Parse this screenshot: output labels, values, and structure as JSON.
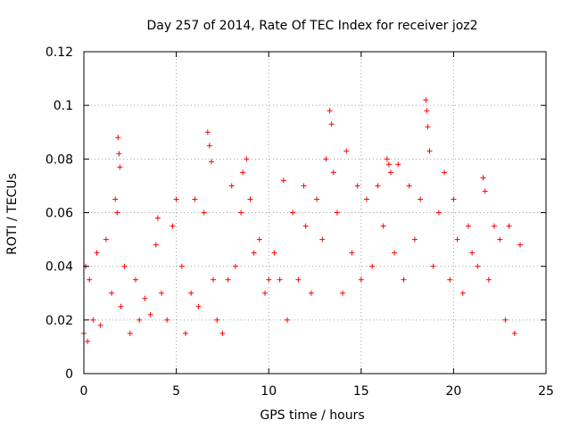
{
  "chart_data": {
    "type": "scatter",
    "title": "Day 257 of 2014, Rate Of TEC Index for receiver joz2",
    "xlabel": "GPS time / hours",
    "ylabel": "ROTI / TECUs",
    "xlim": [
      0,
      25
    ],
    "ylim": [
      0,
      0.12
    ],
    "x_ticks": [
      0,
      5,
      10,
      15,
      20,
      25
    ],
    "x_tick_labels": [
      "0",
      "5",
      "10",
      "15",
      "20",
      "25"
    ],
    "y_ticks": [
      0,
      0.02,
      0.04,
      0.06,
      0.08,
      0.1,
      0.12
    ],
    "y_tick_labels": [
      "0",
      "0.02",
      "0.04",
      "0.06",
      "0.08",
      "0.1",
      "0.12"
    ],
    "grid": true,
    "marker": "+",
    "color": "#ff0000",
    "series": [
      {
        "name": "ROTI",
        "x": [
          0.0,
          0.1,
          0.2,
          0.3,
          0.5,
          0.7,
          0.9,
          1.2,
          1.5,
          1.7,
          1.8,
          1.85,
          1.9,
          1.95,
          2.0,
          2.2,
          2.5,
          2.8,
          3.0,
          3.3,
          3.6,
          3.9,
          4.0,
          4.2,
          4.5,
          4.8,
          5.0,
          5.3,
          5.5,
          5.8,
          6.0,
          6.2,
          6.5,
          6.7,
          6.8,
          6.9,
          7.0,
          7.2,
          7.5,
          7.8,
          8.0,
          8.2,
          8.5,
          8.6,
          8.8,
          9.0,
          9.2,
          9.5,
          9.8,
          10.0,
          10.3,
          10.6,
          10.8,
          11.0,
          11.3,
          11.6,
          11.9,
          12.0,
          12.3,
          12.6,
          12.9,
          13.1,
          13.3,
          13.4,
          13.5,
          13.7,
          14.0,
          14.2,
          14.5,
          14.8,
          15.0,
          15.3,
          15.6,
          15.9,
          16.2,
          16.4,
          16.5,
          16.6,
          16.8,
          17.0,
          17.3,
          17.6,
          17.9,
          18.2,
          18.5,
          18.55,
          18.6,
          18.7,
          18.9,
          19.2,
          19.5,
          19.8,
          20.0,
          20.2,
          20.5,
          20.8,
          21.0,
          21.3,
          21.6,
          21.7,
          21.9,
          22.2,
          22.5,
          22.8,
          23.0,
          23.3,
          23.6
        ],
        "y": [
          0.015,
          0.04,
          0.012,
          0.035,
          0.02,
          0.045,
          0.018,
          0.05,
          0.03,
          0.065,
          0.06,
          0.088,
          0.082,
          0.077,
          0.025,
          0.04,
          0.015,
          0.035,
          0.02,
          0.028,
          0.022,
          0.048,
          0.058,
          0.03,
          0.02,
          0.055,
          0.065,
          0.04,
          0.015,
          0.03,
          0.065,
          0.025,
          0.06,
          0.09,
          0.085,
          0.079,
          0.035,
          0.02,
          0.015,
          0.035,
          0.07,
          0.04,
          0.06,
          0.075,
          0.08,
          0.065,
          0.045,
          0.05,
          0.03,
          0.035,
          0.045,
          0.035,
          0.072,
          0.02,
          0.06,
          0.035,
          0.07,
          0.055,
          0.03,
          0.065,
          0.05,
          0.08,
          0.098,
          0.093,
          0.075,
          0.06,
          0.03,
          0.083,
          0.045,
          0.07,
          0.035,
          0.065,
          0.04,
          0.07,
          0.055,
          0.08,
          0.078,
          0.075,
          0.045,
          0.078,
          0.035,
          0.07,
          0.05,
          0.065,
          0.102,
          0.098,
          0.092,
          0.083,
          0.04,
          0.06,
          0.075,
          0.035,
          0.065,
          0.05,
          0.03,
          0.055,
          0.045,
          0.04,
          0.073,
          0.068,
          0.035,
          0.055,
          0.05,
          0.02,
          0.055,
          0.015,
          0.048
        ]
      }
    ]
  }
}
